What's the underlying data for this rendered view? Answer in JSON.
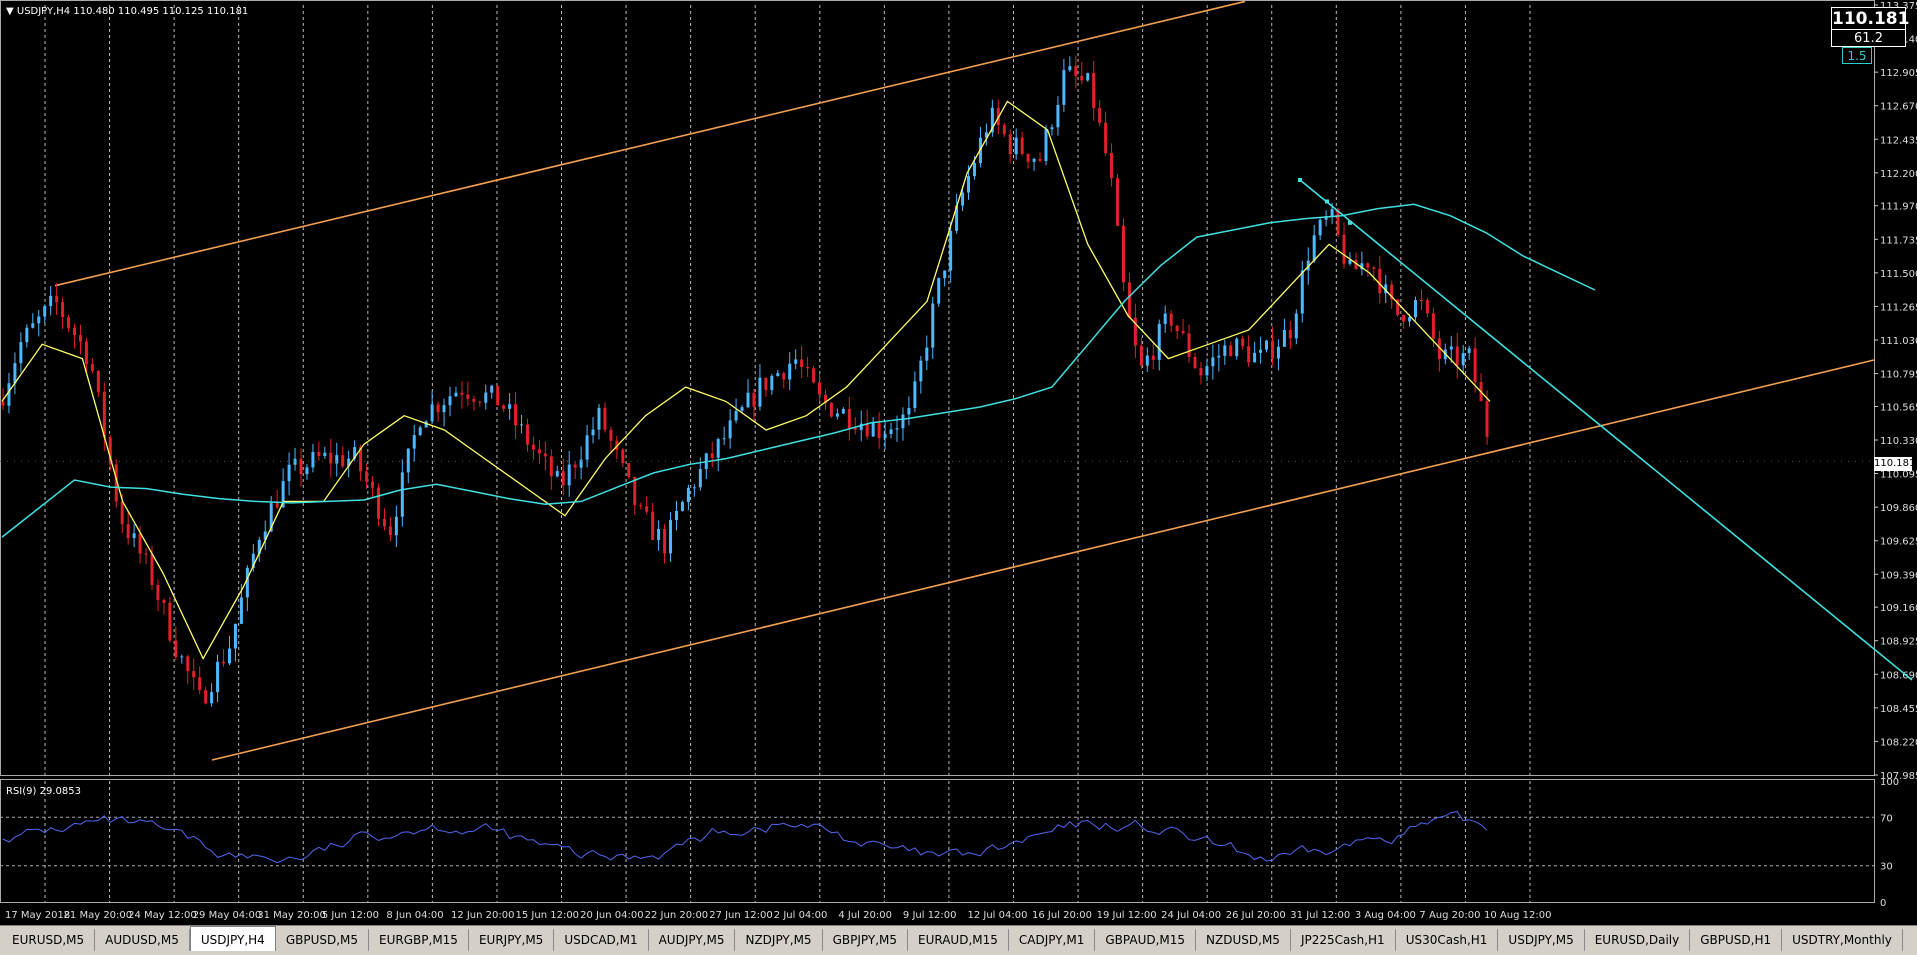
{
  "header": {
    "symbol_info": "USDJPY,H4  110.480 110.495 110.125 110.181"
  },
  "price_panel": {
    "price": "110.181",
    "spread": "61.2",
    "small_value": "1.5",
    "current_price_label": "110.181"
  },
  "chart_data": {
    "type": "candlestick",
    "ylim": [
      107.985,
      113.375
    ],
    "y_ticks": [
      "113.375",
      "113.140",
      "112.905",
      "112.670",
      "112.435",
      "112.200",
      "111.970",
      "111.735",
      "111.500",
      "111.265",
      "111.030",
      "110.795",
      "110.565",
      "110.330",
      "110.095",
      "109.860",
      "109.625",
      "109.390",
      "109.160",
      "108.925",
      "108.690",
      "108.455",
      "108.220",
      "107.985"
    ],
    "x_labels": [
      "17 May 2018",
      "21 May 20:00",
      "24 May 12:00",
      "29 May 04:00",
      "31 May 20:00",
      "5 Jun 12:00",
      "8 Jun 04:00",
      "12 Jun 20:00",
      "15 Jun 12:00",
      "20 Jun 04:00",
      "22 Jun 20:00",
      "27 Jun 12:00",
      "2 Jul 04:00",
      "4 Jul 20:00",
      "9 Jul 12:00",
      "12 Jul 04:00",
      "16 Jul 20:00",
      "19 Jul 12:00",
      "24 Jul 04:00",
      "26 Jul 20:00",
      "31 Jul 12:00",
      "3 Aug 04:00",
      "7 Aug 20:00",
      "10 Aug 12:00"
    ],
    "candle_count": 250,
    "bull_color": "#4db8ff",
    "bear_color": "#e0202a",
    "channel_color": "#f4a050",
    "ma_fast_color": "#ffff66",
    "ma_slow_color": "#40e0e0",
    "trendline_color": "#40e0e0",
    "ma_slow_path": [
      110.35,
      110.6,
      110.7,
      110.55,
      110.4,
      110.3,
      110.4,
      110.3,
      110.1,
      110.3,
      110.4,
      110.3,
      110.6,
      110.8,
      110.9,
      110.9,
      111.3,
      111.5,
      112.0,
      112.3,
      112.9,
      111.9,
      111.2,
      111.1,
      111.0,
      111.05,
      111.4,
      111.6,
      110.3,
      110.181
    ],
    "ma_fast_path": [
      110.16,
      110.12,
      110.23,
      110.13,
      110.1,
      110.06,
      110.02,
      109.98,
      109.86,
      109.9,
      109.88,
      110.0,
      110.1,
      110.18,
      110.24,
      110.27,
      110.36,
      110.52,
      110.83,
      111.1,
      111.44,
      111.51,
      111.61,
      111.67,
      111.66,
      111.69,
      111.7,
      111.69,
      111.58,
      111.44
    ],
    "ma_fast_points": [
      110.6,
      111.0,
      110.9,
      109.9,
      109.4,
      108.8,
      109.3,
      109.9,
      109.9,
      110.3,
      110.5,
      110.4,
      110.2,
      110.0,
      109.8,
      110.2,
      110.5,
      110.7,
      110.6,
      110.4,
      110.5,
      110.7,
      111.0,
      111.3,
      112.2,
      112.7,
      112.5,
      111.7,
      111.2,
      110.9,
      111.0,
      111.1,
      111.4,
      111.7,
      111.5,
      111.2,
      110.9,
      110.6
    ],
    "rsi": {
      "label": "RSI(9) 29.0853",
      "levels": [
        100,
        70,
        30,
        0
      ]
    }
  },
  "tabs": [
    {
      "label": "EURUSD,M5"
    },
    {
      "label": "AUDUSD,M5"
    },
    {
      "label": "USDJPY,H4"
    },
    {
      "label": "GBPUSD,M5"
    },
    {
      "label": "EURGBP,M15"
    },
    {
      "label": "EURJPY,M5"
    },
    {
      "label": "USDCAD,M1"
    },
    {
      "label": "AUDJPY,M5"
    },
    {
      "label": "NZDJPY,M5"
    },
    {
      "label": "GBPJPY,M5"
    },
    {
      "label": "EURAUD,M15"
    },
    {
      "label": "CADJPY,M1"
    },
    {
      "label": "GBPAUD,M15"
    },
    {
      "label": "NZDUSD,M5"
    },
    {
      "label": "JP225Cash,H1"
    },
    {
      "label": "US30Cash,H1"
    },
    {
      "label": "USDJPY,M5"
    },
    {
      "label": "EURUSD,Daily"
    },
    {
      "label": "GBPUSD,H1"
    },
    {
      "label": "USDTRY,Monthly"
    }
  ],
  "active_tab": 2
}
